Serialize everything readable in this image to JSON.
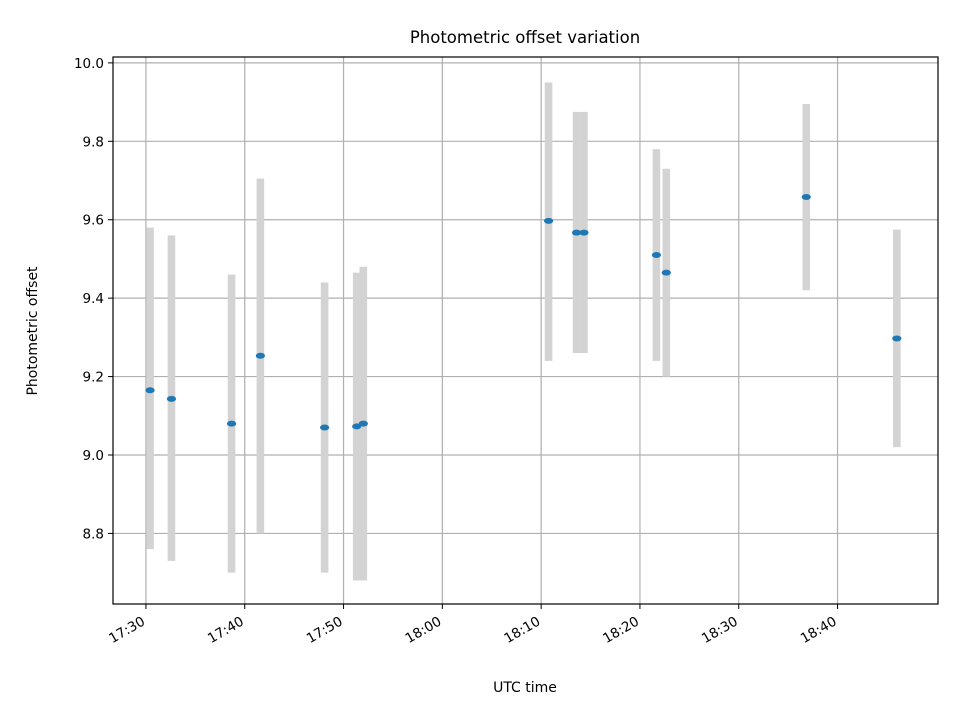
{
  "chart_data": {
    "type": "scatter",
    "title": "Photometric offset variation",
    "xlabel": "UTC time",
    "ylabel": "Photometric offset",
    "x_ticks": [
      "17:30",
      "17:40",
      "17:50",
      "18:00",
      "18:10",
      "18:20",
      "18:30",
      "18:40"
    ],
    "y_ticks": [
      "8.8",
      "9.0",
      "9.2",
      "9.4",
      "9.6",
      "9.8",
      "10.0"
    ],
    "xlim": [
      "17:26:40",
      "18:50:10"
    ],
    "ylim": [
      8.62,
      10.015
    ],
    "grid": true,
    "point_color": "#1f77b4",
    "errorbar_color": "#d3d3d3",
    "points": [
      {
        "t": "17:30:25",
        "y": 9.165,
        "lo": 8.76,
        "hi": 9.58
      },
      {
        "t": "17:32:35",
        "y": 9.143,
        "lo": 8.73,
        "hi": 9.56
      },
      {
        "t": "17:38:40",
        "y": 9.08,
        "lo": 8.7,
        "hi": 9.46
      },
      {
        "t": "17:41:35",
        "y": 9.253,
        "lo": 8.8,
        "hi": 9.705
      },
      {
        "t": "17:48:05",
        "y": 9.07,
        "lo": 8.7,
        "hi": 9.44
      },
      {
        "t": "17:51:20",
        "y": 9.073,
        "lo": 8.68,
        "hi": 9.465
      },
      {
        "t": "17:52:00",
        "y": 9.08,
        "lo": 8.68,
        "hi": 9.48
      },
      {
        "t": "18:10:45",
        "y": 9.597,
        "lo": 9.24,
        "hi": 9.95
      },
      {
        "t": "18:13:35",
        "y": 9.567,
        "lo": 9.26,
        "hi": 9.875
      },
      {
        "t": "18:14:20",
        "y": 9.567,
        "lo": 9.26,
        "hi": 9.875
      },
      {
        "t": "18:21:40",
        "y": 9.51,
        "lo": 9.24,
        "hi": 9.78
      },
      {
        "t": "18:22:40",
        "y": 9.465,
        "lo": 9.2,
        "hi": 9.73
      },
      {
        "t": "18:36:50",
        "y": 9.658,
        "lo": 9.42,
        "hi": 9.895
      },
      {
        "t": "18:46:00",
        "y": 9.297,
        "lo": 9.02,
        "hi": 9.575
      }
    ]
  }
}
